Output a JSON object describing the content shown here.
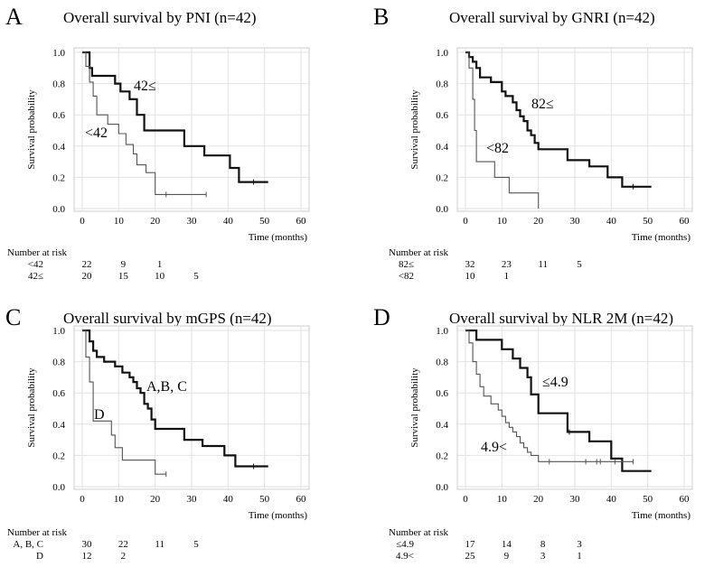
{
  "chart_data": [
    {
      "panel": "A",
      "type": "line",
      "subtype": "kaplan-meier",
      "title": "Overall survival by PNI (n=42)",
      "xlabel": "Time (months)",
      "ylabel": "Survival probability",
      "xlim": [
        0,
        60
      ],
      "ylim": [
        0,
        1
      ],
      "xticks": [
        "0",
        "10",
        "20",
        "30",
        "40",
        "50",
        "60"
      ],
      "yticks": [
        "0.0",
        "0.2",
        "0.4",
        "0.6",
        "0.8",
        "1.0"
      ],
      "grid": true,
      "series": [
        {
          "name": "42≤",
          "label": "42≤",
          "bold": true,
          "steps": [
            [
              0,
              1.0
            ],
            [
              2,
              0.9
            ],
            [
              2.7,
              0.85
            ],
            [
              9,
              0.8
            ],
            [
              10.5,
              0.75
            ],
            [
              13,
              0.7
            ],
            [
              15,
              0.6
            ],
            [
              17,
              0.5
            ],
            [
              28,
              0.4
            ],
            [
              33.5,
              0.34
            ],
            [
              40.5,
              0.26
            ],
            [
              43,
              0.17
            ],
            [
              51,
              0.17
            ]
          ],
          "censors": [
            [
              47,
              0.17
            ]
          ]
        },
        {
          "name": "<42",
          "label": "<42",
          "bold": false,
          "steps": [
            [
              0,
              1.0
            ],
            [
              1,
              0.91
            ],
            [
              2,
              0.81
            ],
            [
              3,
              0.72
            ],
            [
              4,
              0.6
            ],
            [
              7,
              0.54
            ],
            [
              10,
              0.48
            ],
            [
              12,
              0.41
            ],
            [
              14,
              0.35
            ],
            [
              15,
              0.28
            ],
            [
              17.5,
              0.23
            ],
            [
              20,
              0.09
            ],
            [
              34,
              0.09
            ]
          ],
          "censors": [
            [
              23,
              0.09
            ],
            [
              34,
              0.09
            ]
          ]
        }
      ],
      "risk_table": {
        "header": "Number at risk",
        "times": [
          0,
          10,
          20,
          30
        ],
        "rows": [
          {
            "label": "<42",
            "values": [
              "22",
              "9",
              "1",
              ""
            ]
          },
          {
            "label": "42≤",
            "values": [
              "20",
              "15",
              "10",
              "5"
            ]
          }
        ]
      }
    },
    {
      "panel": "B",
      "type": "line",
      "subtype": "kaplan-meier",
      "title": "Overall survival by GNRI (n=42)",
      "xlabel": "Time (months)",
      "ylabel": "Survival probability",
      "xlim": [
        0,
        60
      ],
      "ylim": [
        0,
        1
      ],
      "xticks": [
        "0",
        "10",
        "20",
        "30",
        "40",
        "50",
        "60"
      ],
      "yticks": [
        "0.0",
        "0.2",
        "0.4",
        "0.6",
        "0.8",
        "1.0"
      ],
      "grid": true,
      "series": [
        {
          "name": "82≤",
          "label": "82≤",
          "bold": true,
          "steps": [
            [
              0,
              1.0
            ],
            [
              1,
              0.97
            ],
            [
              2,
              0.94
            ],
            [
              3,
              0.9
            ],
            [
              4,
              0.84
            ],
            [
              7,
              0.81
            ],
            [
              10,
              0.75
            ],
            [
              11,
              0.72
            ],
            [
              13,
              0.68
            ],
            [
              14,
              0.63
            ],
            [
              15,
              0.59
            ],
            [
              16,
              0.56
            ],
            [
              17,
              0.5
            ],
            [
              18,
              0.47
            ],
            [
              19,
              0.42
            ],
            [
              20,
              0.38
            ],
            [
              28,
              0.31
            ],
            [
              34,
              0.27
            ],
            [
              39,
              0.2
            ],
            [
              43,
              0.14
            ],
            [
              51,
              0.14
            ]
          ],
          "censors": [
            [
              46,
              0.14
            ]
          ]
        },
        {
          "name": "<82",
          "label": "<82",
          "bold": false,
          "steps": [
            [
              0,
              1.0
            ],
            [
              1,
              0.9
            ],
            [
              2,
              0.7
            ],
            [
              2.5,
              0.5
            ],
            [
              3,
              0.3
            ],
            [
              8,
              0.2
            ],
            [
              12,
              0.1
            ],
            [
              20,
              0.0
            ]
          ],
          "censors": []
        }
      ],
      "risk_table": {
        "header": "Number at risk",
        "times": [
          0,
          10,
          20,
          30
        ],
        "rows": [
          {
            "label": "82≤",
            "values": [
              "32",
              "23",
              "11",
              "5"
            ]
          },
          {
            "label": "<82",
            "values": [
              "10",
              "1",
              "",
              ""
            ]
          }
        ]
      }
    },
    {
      "panel": "C",
      "type": "line",
      "subtype": "kaplan-meier",
      "title": "Overall survival by mGPS (n=42)",
      "xlabel": "Time (months)",
      "ylabel": "Survival probability",
      "xlim": [
        0,
        60
      ],
      "ylim": [
        0,
        1
      ],
      "xticks": [
        "0",
        "10",
        "20",
        "30",
        "40",
        "50",
        "60"
      ],
      "yticks": [
        "0.0",
        "0.2",
        "0.4",
        "0.6",
        "0.8",
        "1.0"
      ],
      "grid": true,
      "series": [
        {
          "name": "A,B, C",
          "label": "A,B, C",
          "bold": true,
          "steps": [
            [
              0,
              1.0
            ],
            [
              2,
              0.93
            ],
            [
              3,
              0.87
            ],
            [
              4,
              0.83
            ],
            [
              6,
              0.8
            ],
            [
              9,
              0.77
            ],
            [
              11,
              0.73
            ],
            [
              13,
              0.7
            ],
            [
              14,
              0.67
            ],
            [
              15,
              0.63
            ],
            [
              16,
              0.6
            ],
            [
              17,
              0.53
            ],
            [
              18,
              0.5
            ],
            [
              19,
              0.43
            ],
            [
              20,
              0.37
            ],
            [
              28,
              0.3
            ],
            [
              33,
              0.26
            ],
            [
              39,
              0.2
            ],
            [
              42,
              0.13
            ],
            [
              51,
              0.13
            ]
          ],
          "censors": [
            [
              47,
              0.13
            ]
          ]
        },
        {
          "name": "D",
          "label": "D",
          "bold": false,
          "steps": [
            [
              0,
              1.0
            ],
            [
              1,
              0.83
            ],
            [
              2,
              0.67
            ],
            [
              3,
              0.42
            ],
            [
              8,
              0.33
            ],
            [
              9,
              0.25
            ],
            [
              11,
              0.17
            ],
            [
              20,
              0.08
            ],
            [
              23,
              0.08
            ]
          ],
          "censors": [
            [
              23,
              0.08
            ]
          ]
        }
      ],
      "risk_table": {
        "header": "Number at risk",
        "times": [
          0,
          10,
          20,
          30
        ],
        "rows": [
          {
            "label": "A, B, C",
            "values": [
              "30",
              "22",
              "11",
              "5"
            ]
          },
          {
            "label": "D",
            "values": [
              "12",
              "2",
              "",
              ""
            ]
          }
        ]
      }
    },
    {
      "panel": "D",
      "type": "line",
      "subtype": "kaplan-meier",
      "title": "Overall survival by NLR 2M (n=42)",
      "xlabel": "Time (months)",
      "ylabel": "Survival probability",
      "xlim": [
        0,
        60
      ],
      "ylim": [
        0,
        1
      ],
      "xticks": [
        "0",
        "10",
        "20",
        "30",
        "40",
        "50",
        "60"
      ],
      "yticks": [
        "0.0",
        "0.2",
        "0.4",
        "0.6",
        "0.8",
        "1.0"
      ],
      "grid": true,
      "series": [
        {
          "name": "≤4.9",
          "label": "≤4.9",
          "bold": true,
          "steps": [
            [
              0,
              1.0
            ],
            [
              3,
              0.94
            ],
            [
              10,
              0.88
            ],
            [
              13,
              0.82
            ],
            [
              15,
              0.76
            ],
            [
              17,
              0.7
            ],
            [
              18,
              0.59
            ],
            [
              20,
              0.47
            ],
            [
              28,
              0.35
            ],
            [
              34,
              0.29
            ],
            [
              40,
              0.18
            ],
            [
              43,
              0.1
            ],
            [
              51,
              0.1
            ]
          ],
          "censors": [
            [
              28.5,
              0.35
            ]
          ]
        },
        {
          "name": "4.9<",
          "label": "4.9<",
          "bold": false,
          "steps": [
            [
              0,
              1.0
            ],
            [
              1,
              0.92
            ],
            [
              2,
              0.8
            ],
            [
              3,
              0.72
            ],
            [
              4,
              0.64
            ],
            [
              5,
              0.58
            ],
            [
              7,
              0.53
            ],
            [
              9,
              0.49
            ],
            [
              10,
              0.45
            ],
            [
              11,
              0.41
            ],
            [
              12,
              0.38
            ],
            [
              13,
              0.35
            ],
            [
              14,
              0.32
            ],
            [
              15,
              0.28
            ],
            [
              16,
              0.25
            ],
            [
              17,
              0.22
            ],
            [
              18,
              0.2
            ],
            [
              20,
              0.16
            ],
            [
              46,
              0.16
            ]
          ],
          "censors": [
            [
              23,
              0.16
            ],
            [
              33,
              0.16
            ],
            [
              36,
              0.16
            ],
            [
              37,
              0.16
            ],
            [
              41,
              0.16
            ],
            [
              46,
              0.16
            ]
          ]
        }
      ],
      "risk_table": {
        "header": "Number at risk",
        "times": [
          0,
          10,
          20,
          30
        ],
        "rows": [
          {
            "label": "≤4.9",
            "values": [
              "17",
              "14",
              "8",
              "3"
            ]
          },
          {
            "label": "4.9<",
            "values": [
              "25",
              "9",
              "3",
              "1"
            ]
          }
        ]
      }
    }
  ]
}
